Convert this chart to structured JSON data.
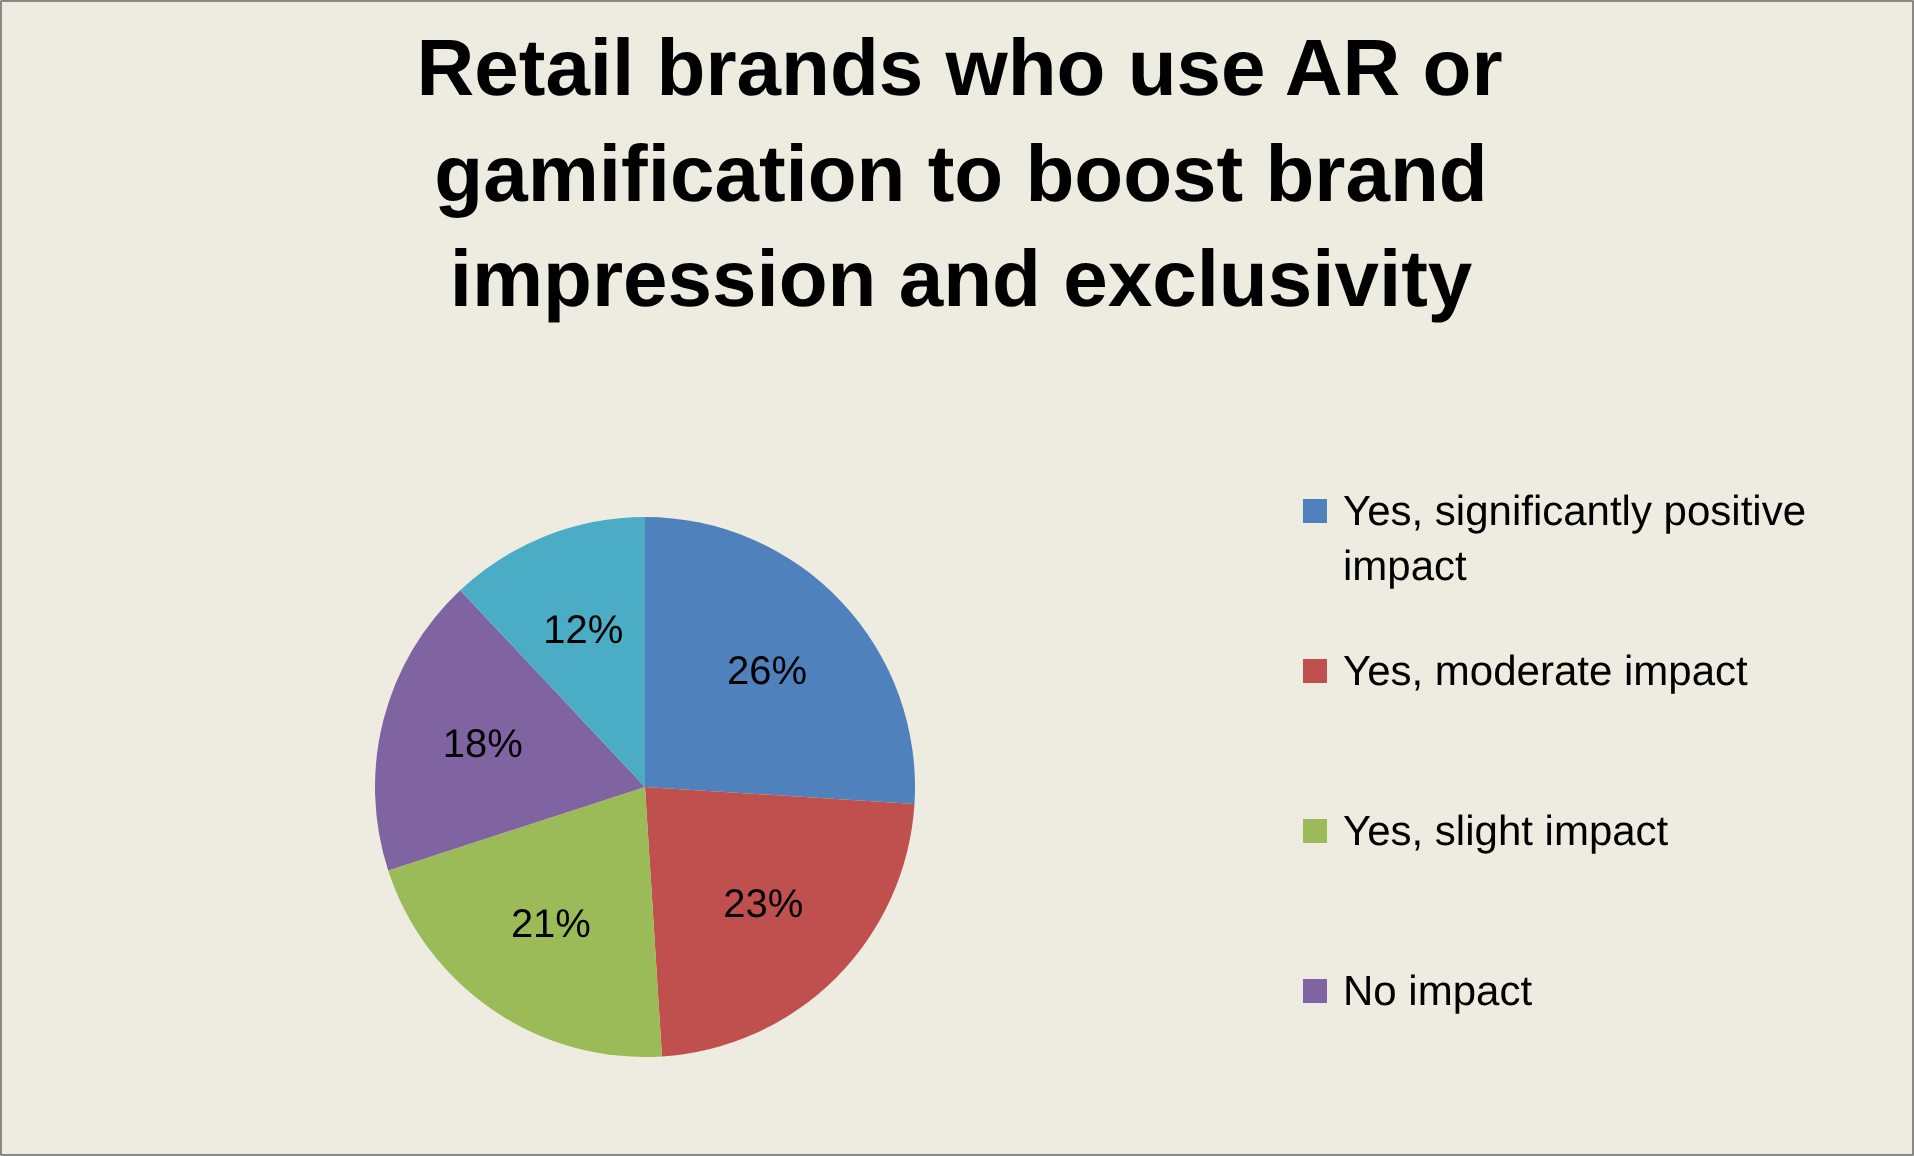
{
  "chart_data": {
    "type": "pie",
    "title": "Retail brands who use AR or\ngamification to boost brand\nimpression and exclusivity",
    "categories": [
      "Yes, significantly positive impact",
      "Yes,  moderate impact",
      "Yes, slight impact",
      "No impact",
      null
    ],
    "values": [
      26,
      23,
      21,
      18,
      12
    ],
    "value_labels": [
      "26%",
      "23%",
      "21%",
      "18%",
      "12%"
    ],
    "colors": [
      "#4f81bd",
      "#c0504d",
      "#9bbb59",
      "#8064a2",
      "#4bacc6"
    ],
    "legend": "right"
  }
}
